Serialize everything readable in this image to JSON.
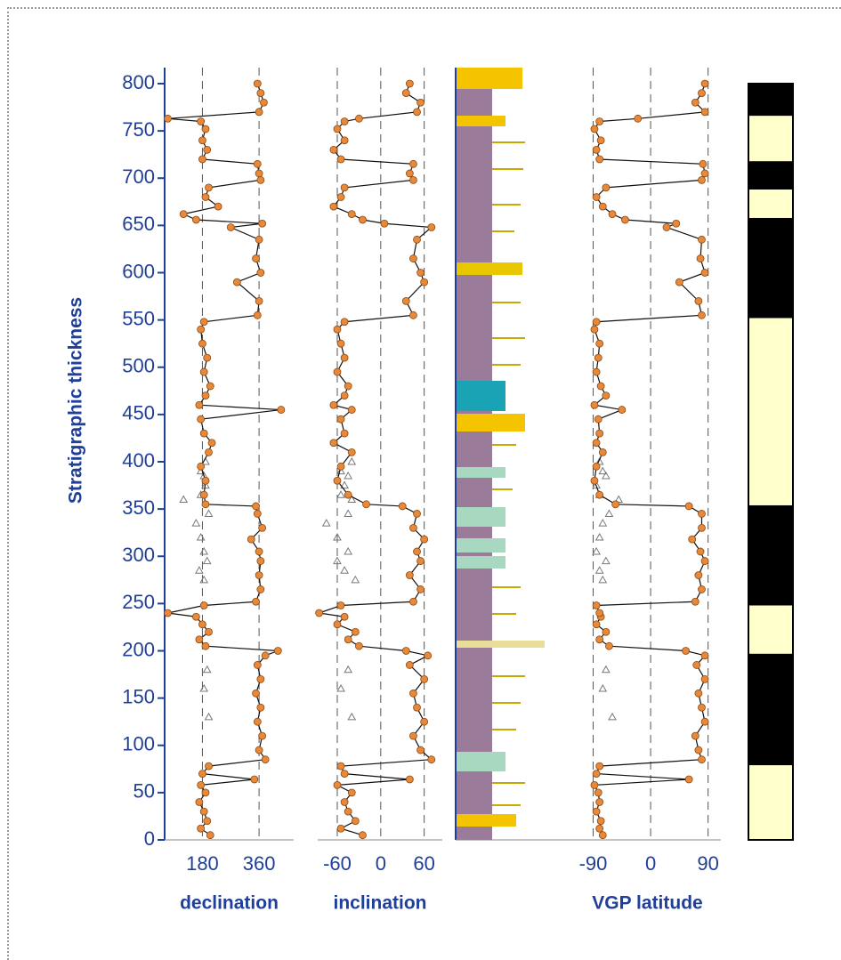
{
  "chart_data": [
    {
      "type": "line",
      "x_label": "declination",
      "y_label": "Stratigraphic thickness",
      "ylim": [
        0,
        800
      ],
      "yticks": [
        0,
        50,
        100,
        150,
        200,
        250,
        300,
        350,
        400,
        450,
        500,
        550,
        600,
        650,
        700,
        750,
        800
      ],
      "xlim": [
        60,
        470
      ],
      "xticks": [
        180,
        360
      ],
      "grid": true,
      "y": [
        5,
        12,
        20,
        30,
        40,
        50,
        58,
        64,
        70,
        78,
        85,
        95,
        110,
        125,
        140,
        155,
        170,
        185,
        195,
        200,
        205,
        212,
        220,
        228,
        236,
        240,
        248,
        252,
        265,
        280,
        295,
        305,
        318,
        330,
        345,
        353,
        355,
        365,
        380,
        395,
        410,
        420,
        430,
        445,
        455,
        460,
        470,
        480,
        495,
        510,
        525,
        540,
        548,
        555,
        570,
        590,
        600,
        615,
        635,
        648,
        652,
        656,
        662,
        670,
        680,
        690,
        698,
        705,
        715,
        720,
        730,
        740,
        752,
        760,
        763,
        770,
        780,
        790,
        800
      ],
      "series": [
        {
          "color": "#e8883a",
          "values": [
            205,
            175,
            195,
            185,
            170,
            190,
            175,
            345,
            180,
            200,
            380,
            360,
            370,
            355,
            365,
            350,
            365,
            355,
            380,
            420,
            190,
            170,
            200,
            180,
            160,
            70,
            185,
            350,
            365,
            360,
            365,
            360,
            335,
            370,
            355,
            350,
            190,
            185,
            190,
            175,
            200,
            210,
            185,
            175,
            430,
            170,
            190,
            205,
            185,
            195,
            180,
            175,
            185,
            355,
            360,
            290,
            365,
            350,
            360,
            270,
            370,
            160,
            120,
            230,
            190,
            200,
            365,
            360,
            355,
            180,
            195,
            180,
            190,
            175,
            70,
            360,
            375,
            365,
            355
          ]
        }
      ],
      "rejected_y": [
        130,
        160,
        180,
        275,
        285,
        295,
        305,
        320,
        335,
        345,
        360,
        365,
        375,
        385,
        390,
        400
      ],
      "rejected": [
        200,
        185,
        195,
        185,
        170,
        195,
        185,
        175,
        160,
        200,
        120,
        175,
        190,
        185,
        175,
        190
      ]
    },
    {
      "type": "line",
      "x_label": "inclination",
      "xlim": [
        -87,
        85
      ],
      "xticks": [
        -60,
        0,
        60
      ],
      "grid": true,
      "series": [
        {
          "color": "#e8883a",
          "values": [
            -25,
            -55,
            -35,
            -45,
            -50,
            -40,
            -60,
            40,
            -50,
            -55,
            70,
            55,
            45,
            60,
            50,
            45,
            60,
            40,
            65,
            35,
            -30,
            -45,
            -35,
            -60,
            -50,
            -85,
            -55,
            45,
            55,
            40,
            55,
            50,
            60,
            45,
            50,
            30,
            -20,
            -45,
            -60,
            -55,
            -40,
            -65,
            -50,
            -55,
            -40,
            -65,
            -50,
            -45,
            -60,
            -50,
            -55,
            -60,
            -50,
            45,
            35,
            60,
            55,
            45,
            50,
            70,
            5,
            -25,
            -40,
            -65,
            -55,
            -50,
            45,
            40,
            45,
            -55,
            -65,
            -50,
            -60,
            -50,
            -30,
            50,
            55,
            35,
            40
          ]
        }
      ],
      "rejected": [
        -40,
        -55,
        -45,
        -35,
        -50,
        -60,
        -45,
        -60,
        -75,
        -45,
        -40,
        -55,
        -50,
        -45,
        -55,
        -40
      ]
    },
    {
      "type": "line",
      "x_label": "VGP latitude",
      "xlim": [
        -120,
        110
      ],
      "xticks": [
        -90,
        0,
        90
      ],
      "grid": true,
      "series": [
        {
          "color": "#e8883a",
          "values": [
            -75,
            -80,
            -78,
            -85,
            -80,
            -82,
            -88,
            60,
            -85,
            -80,
            80,
            75,
            70,
            85,
            80,
            75,
            85,
            72,
            85,
            55,
            -65,
            -80,
            -70,
            -85,
            -78,
            -80,
            -85,
            70,
            80,
            75,
            85,
            78,
            65,
            80,
            80,
            60,
            -55,
            -80,
            -88,
            -85,
            -75,
            -85,
            -80,
            -82,
            -45,
            -88,
            -70,
            -78,
            -85,
            -82,
            -80,
            -88,
            -85,
            80,
            75,
            45,
            85,
            78,
            80,
            25,
            40,
            -40,
            -60,
            -75,
            -85,
            -70,
            80,
            85,
            82,
            -80,
            -85,
            -78,
            -88,
            -80,
            -20,
            85,
            70,
            80,
            85
          ]
        }
      ],
      "rejected": [
        -60,
        -75,
        -70,
        -75,
        -80,
        -70,
        -85,
        -80,
        -75,
        -65,
        -50,
        -80,
        -85,
        -70,
        -75,
        -80
      ]
    },
    {
      "type": "polarity",
      "bounds": [
        0,
        79,
        197,
        248,
        354,
        552,
        658,
        688,
        718,
        766,
        800
      ],
      "colors": [
        "#ffffcc",
        "#000000",
        "#ffffcc",
        "#000000",
        "#ffffcc",
        "#000000",
        "#ffffcc",
        "#000000",
        "#ffffcc",
        "#000000"
      ]
    }
  ]
}
